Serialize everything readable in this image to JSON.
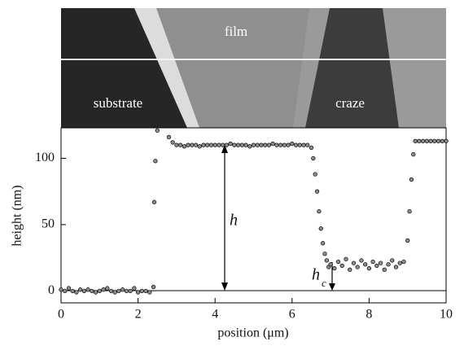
{
  "chart_data": {
    "type": "scatter",
    "image_labels": [
      "film",
      "substrate",
      "craze"
    ],
    "annotations": [
      {
        "text": "h"
      },
      {
        "text": "h",
        "sub": "c"
      }
    ],
    "x_label": "position (μm)",
    "y_label": "height (nm)",
    "xlim": [
      0,
      10
    ],
    "ylim": [
      -9,
      123
    ],
    "xticks": [
      0,
      2,
      4,
      6,
      8,
      10
    ],
    "yticks": [
      0,
      50,
      100
    ],
    "color": "#8c8c8c",
    "x": [
      0.0,
      0.1,
      0.2,
      0.3,
      0.4,
      0.5,
      0.6,
      0.7,
      0.8,
      0.9,
      1.0,
      1.1,
      1.2,
      1.3,
      1.4,
      1.5,
      1.6,
      1.7,
      1.8,
      1.9,
      2.0,
      2.1,
      2.2,
      2.3,
      2.4,
      2.42,
      2.45,
      2.5,
      2.8,
      2.9,
      3.0,
      3.1,
      3.2,
      3.3,
      3.4,
      3.5,
      3.6,
      3.7,
      3.8,
      3.9,
      4.0,
      4.1,
      4.2,
      4.3,
      4.4,
      4.5,
      4.6,
      4.7,
      4.8,
      4.9,
      5.0,
      5.1,
      5.2,
      5.3,
      5.4,
      5.5,
      5.6,
      5.7,
      5.8,
      5.9,
      6.0,
      6.1,
      6.2,
      6.3,
      6.4,
      6.5,
      6.55,
      6.6,
      6.65,
      6.7,
      6.75,
      6.8,
      6.85,
      6.9,
      6.95,
      7.0,
      7.1,
      7.2,
      7.3,
      7.4,
      7.5,
      7.6,
      7.7,
      7.8,
      7.9,
      8.0,
      8.1,
      8.2,
      8.3,
      8.4,
      8.5,
      8.6,
      8.7,
      8.8,
      8.9,
      9.0,
      9.05,
      9.1,
      9.15,
      9.2,
      9.3,
      9.4,
      9.5,
      9.6,
      9.7,
      9.8,
      9.9,
      10.0
    ],
    "values": [
      1,
      0,
      2,
      0,
      -1,
      1,
      0,
      1,
      0,
      -1,
      0,
      1,
      2,
      0,
      -1,
      0,
      1,
      0,
      0,
      2,
      -1,
      0,
      0,
      -1,
      3,
      67,
      98,
      121,
      116,
      112,
      110,
      110,
      109,
      110,
      110,
      110,
      109,
      110,
      110,
      110,
      110,
      110,
      110,
      110,
      111,
      110,
      110,
      110,
      110,
      109,
      110,
      110,
      110,
      110,
      110,
      111,
      110,
      110,
      110,
      110,
      111,
      110,
      110,
      110,
      110,
      108,
      100,
      88,
      75,
      60,
      47,
      36,
      28,
      23,
      18,
      20,
      17,
      22,
      19,
      24,
      16,
      21,
      18,
      23,
      20,
      17,
      22,
      19,
      21,
      16,
      20,
      23,
      18,
      21,
      22,
      38,
      60,
      84,
      103,
      113,
      113,
      113,
      113,
      113,
      113,
      113,
      113,
      113
    ]
  }
}
